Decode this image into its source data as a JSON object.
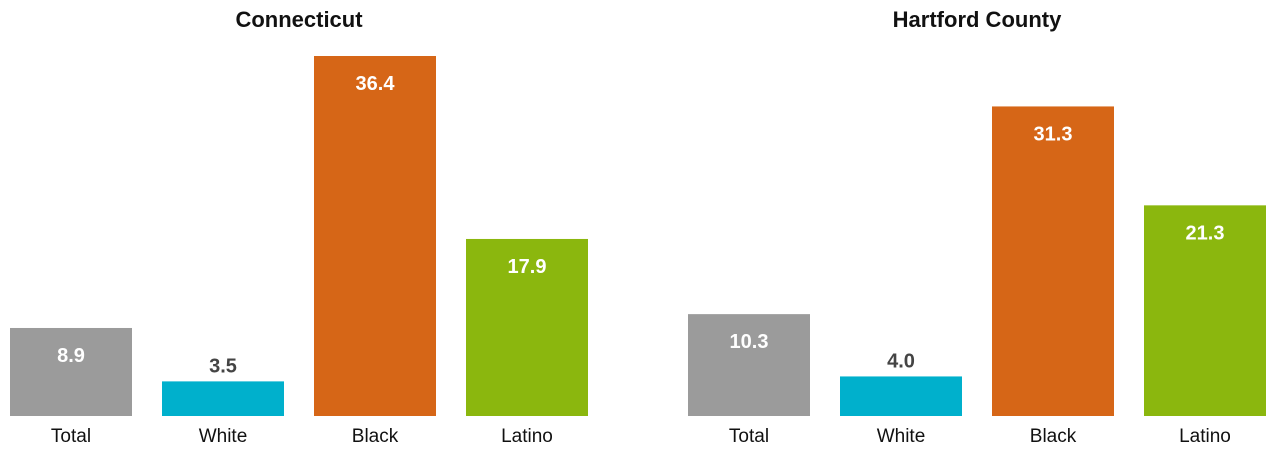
{
  "colors": {
    "Total": "#9b9b9b",
    "White": "#00b0cc",
    "Black": "#d66617",
    "Latino": "#8bb70e"
  },
  "chart_data": [
    {
      "type": "bar",
      "title": "Connecticut",
      "categories": [
        "Total",
        "White",
        "Black",
        "Latino"
      ],
      "values": [
        8.9,
        3.5,
        36.4,
        17.9
      ],
      "value_labels": [
        "8.9",
        "3.5",
        "36.4",
        "17.9"
      ],
      "ylim": [
        0,
        36.4
      ],
      "grid": false,
      "legend": "none"
    },
    {
      "type": "bar",
      "title": "Hartford County",
      "categories": [
        "Total",
        "White",
        "Black",
        "Latino"
      ],
      "values": [
        10.3,
        4.0,
        31.3,
        21.3
      ],
      "value_labels": [
        "10.3",
        "4.0",
        "31.3",
        "21.3"
      ],
      "ylim": [
        0,
        36.4
      ],
      "grid": false,
      "legend": "none"
    }
  ]
}
